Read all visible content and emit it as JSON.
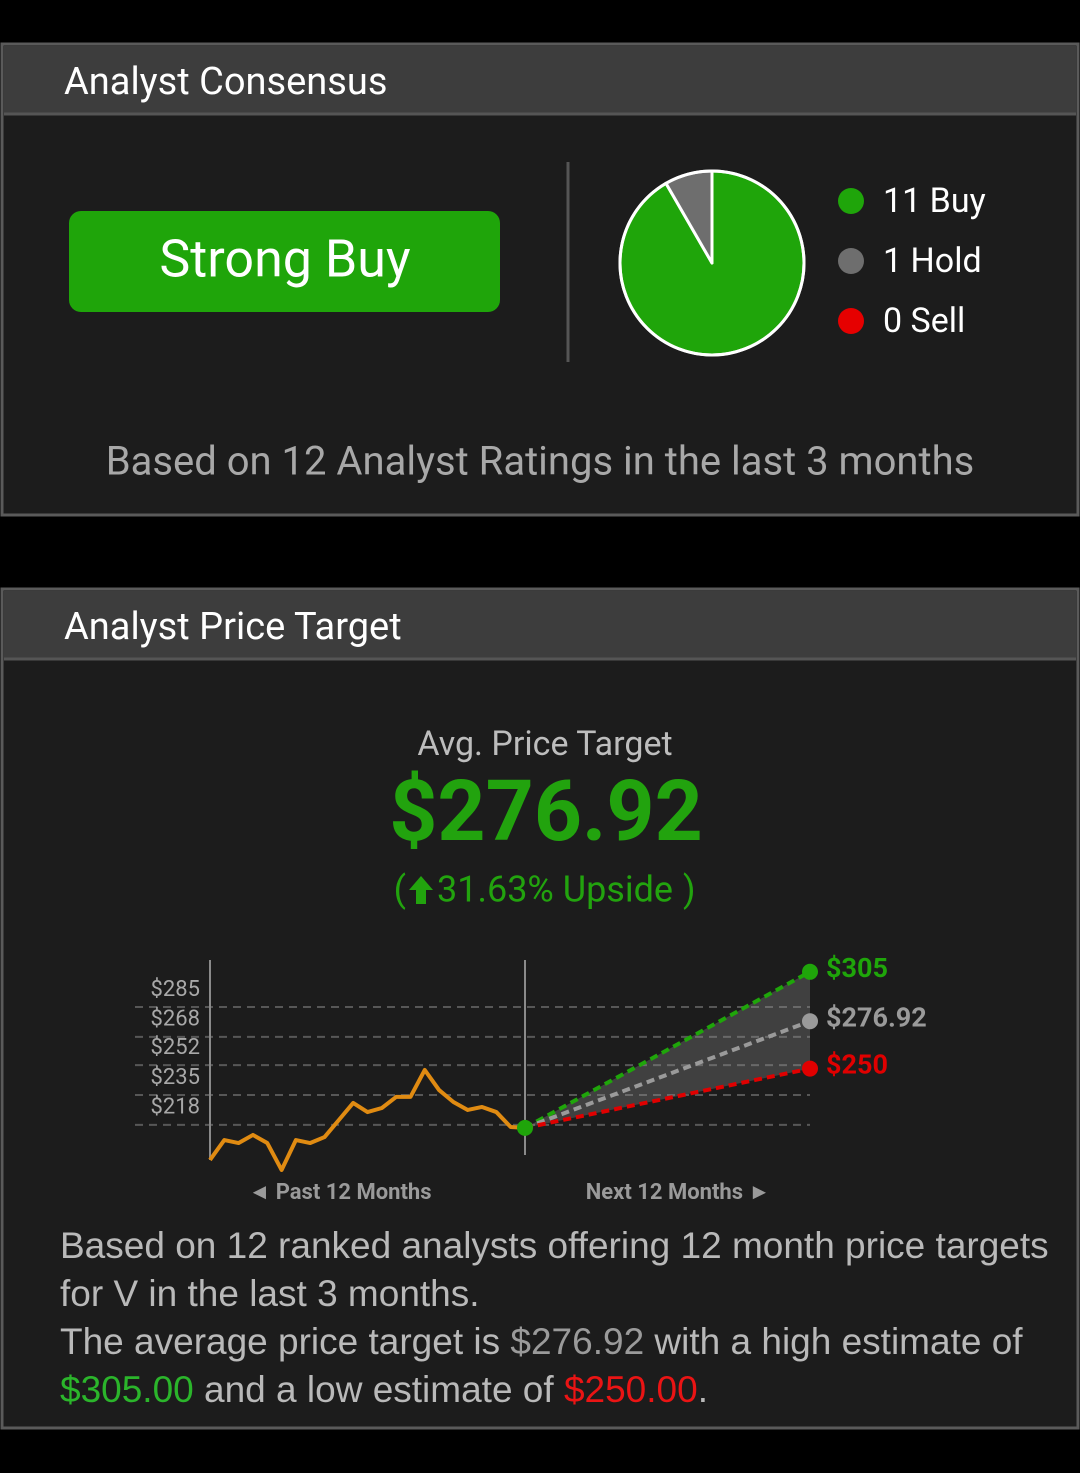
{
  "consensus": {
    "title": "Analyst Consensus",
    "rating": "Strong Buy",
    "note": "Based on 12 Analyst Ratings in the last 3 months",
    "chart_data": {
      "type": "pie",
      "series": [
        {
          "name": "Buy",
          "value": 11,
          "color": "#1fa50a"
        },
        {
          "name": "Hold",
          "value": 1,
          "color": "#6e6e6e"
        },
        {
          "name": "Sell",
          "value": 0,
          "color": "#e60000"
        }
      ]
    }
  },
  "price_target": {
    "title": "Analyst Price Target",
    "avg_caption": "Avg. Price Target",
    "avg_value": "$276.92",
    "upside_open": "(",
    "upside": "31.63% Upside",
    "upside_close": ")",
    "chart_data": {
      "type": "line",
      "ylim": [
        188,
        310
      ],
      "yticks": [
        {
          "value": 285,
          "label": "$285"
        },
        {
          "value": 268,
          "label": "$268"
        },
        {
          "value": 252,
          "label": "$252"
        },
        {
          "value": 235,
          "label": "$235"
        },
        {
          "value": 218,
          "label": "$218"
        }
      ],
      "grid": true,
      "x_captions": [
        "◄ Past 12 Months",
        "Next 12 Months ►"
      ],
      "past": {
        "color": "#e08b12",
        "values": [
          198.1,
          209.4,
          207.7,
          212.3,
          207.7,
          192.4,
          209.4,
          207.7,
          211.1,
          220.8,
          230.5,
          225.3,
          227.6,
          233.9,
          233.9,
          249.2,
          237.8,
          231.0,
          226.5,
          228.2,
          225.3,
          216.8,
          216.3
        ]
      },
      "targets": {
        "values": [
          305,
          276.92,
          250
        ],
        "value_labels": [
          "$305",
          "$276.92",
          "$250"
        ],
        "colors": [
          "#1fa50a",
          "#9a9a9a",
          "#e00000"
        ]
      }
    },
    "summary": {
      "line1": "Based on 12 ranked analysts offering 12 month price targets for V in the last 3 months.",
      "parts": [
        "The average price target is ",
        "$276.92",
        " with a high estimate of ",
        "$305.00",
        " and a low estimate of ",
        "$250.00",
        "."
      ]
    }
  }
}
